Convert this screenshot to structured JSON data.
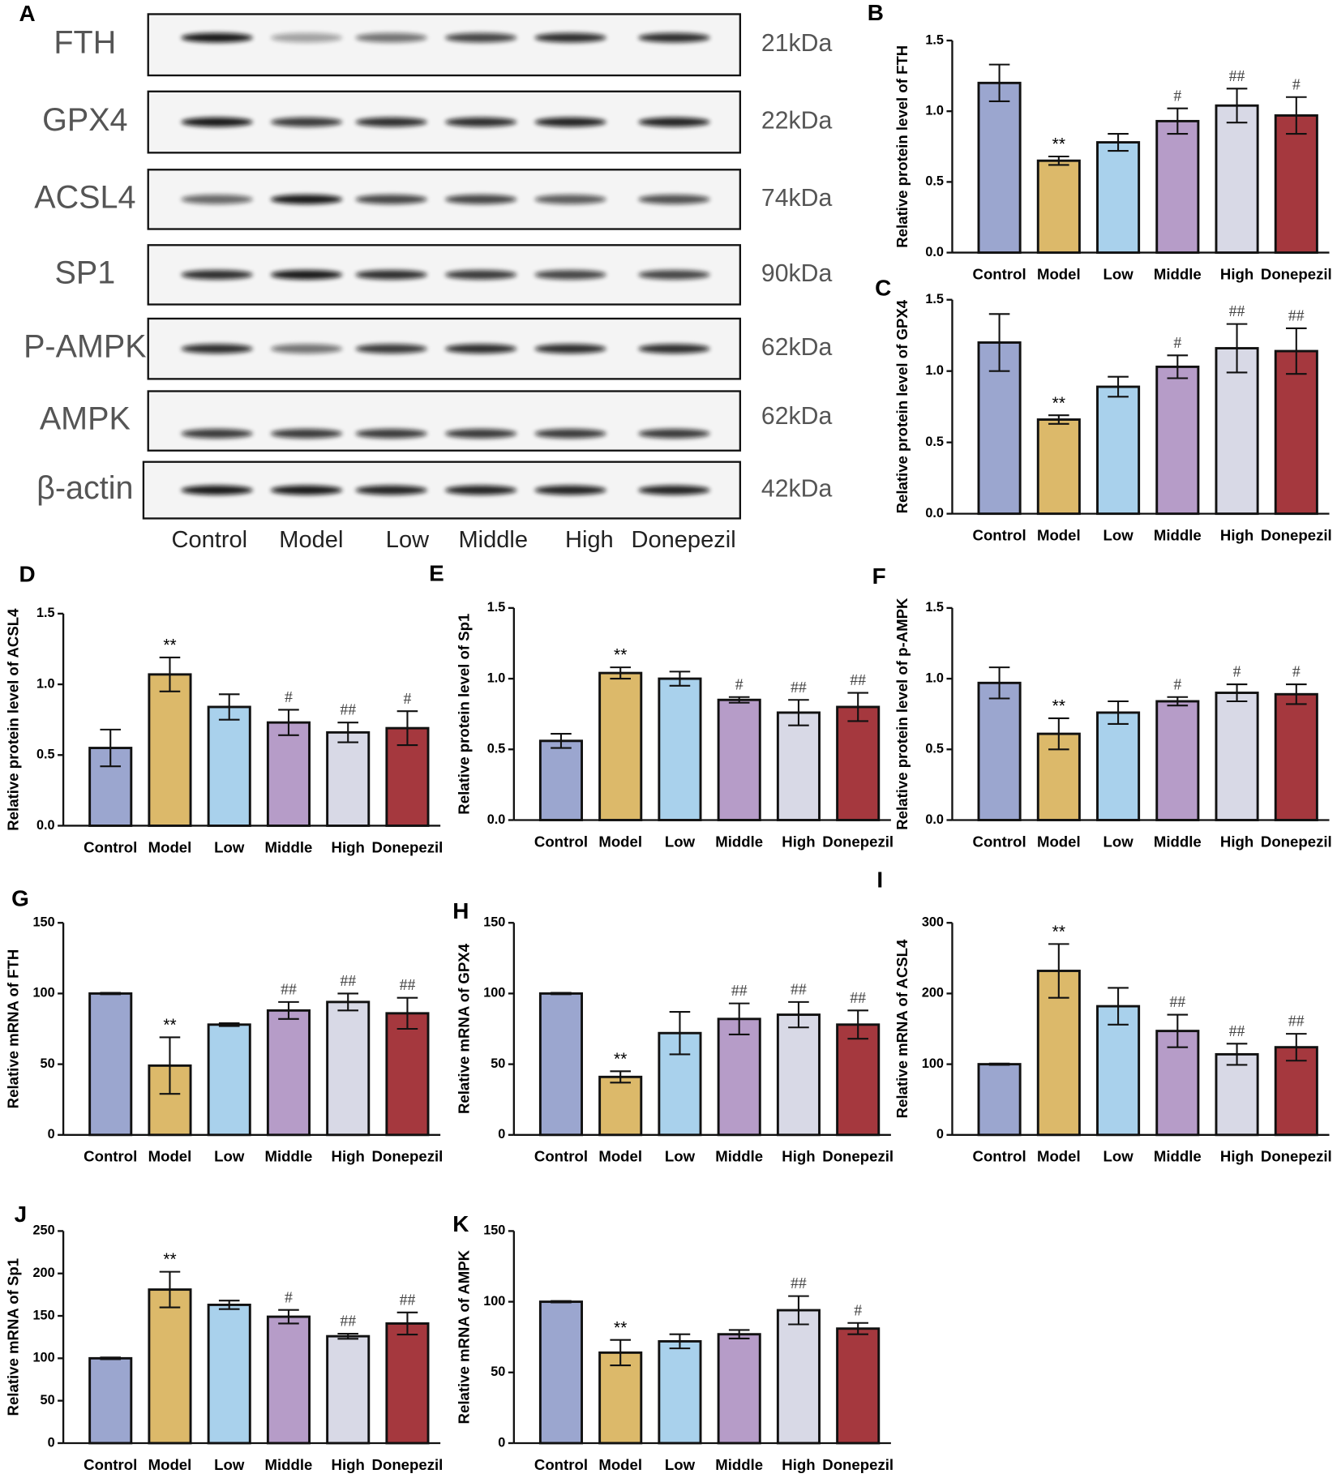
{
  "blot": {
    "label": "A",
    "proteins": [
      {
        "name": "FTH",
        "size": "21kDa"
      },
      {
        "name": "GPX4",
        "size": "22kDa"
      },
      {
        "name": "ACSL4",
        "size": "74kDa"
      },
      {
        "name": "SP1",
        "size": "90kDa"
      },
      {
        "name": "P-AMPK",
        "size": "62kDa"
      },
      {
        "name": "AMPK",
        "size": "62kDa"
      },
      {
        "name": "β-actin",
        "size": "42kDa"
      }
    ],
    "groups": [
      "Control",
      "Model",
      "Low",
      "Middle",
      "High",
      "Donepezil"
    ]
  },
  "chart_data": [
    {
      "type": "bar",
      "label": "B",
      "ylabel": "Relative protein level of  FTH",
      "categories": [
        "Control",
        "Model",
        "Low",
        "Middle",
        "High",
        "Donepezil"
      ],
      "values": [
        1.2,
        0.65,
        0.78,
        0.93,
        1.04,
        0.97
      ],
      "errors": [
        0.13,
        0.03,
        0.06,
        0.09,
        0.12,
        0.13
      ],
      "annotations": [
        null,
        "**",
        null,
        "#",
        "##",
        "#"
      ],
      "colors": [
        "#9ba6cf",
        "#dcb96a",
        "#a9d1ec",
        "#b69cc8",
        "#d8d9e6",
        "#a5383e"
      ],
      "ylim": [
        0,
        1.5
      ],
      "yticks": [
        {
          "value": 0,
          "label": "0.0"
        },
        {
          "value": 0.5,
          "label": "0.5"
        },
        {
          "value": 1,
          "label": "1.0"
        },
        {
          "value": 1.5,
          "label": "1.5"
        }
      ]
    },
    {
      "type": "bar",
      "label": "C",
      "ylabel": "Relative protein level of  GPX4",
      "categories": [
        "Control",
        "Model",
        "Low",
        "Middle",
        "High",
        "Donepezil"
      ],
      "values": [
        1.2,
        0.66,
        0.89,
        1.03,
        1.16,
        1.14
      ],
      "errors": [
        0.2,
        0.03,
        0.07,
        0.08,
        0.17,
        0.16
      ],
      "annotations": [
        null,
        "**",
        null,
        "#",
        "##",
        "##"
      ],
      "colors": [
        "#9ba6cf",
        "#dcb96a",
        "#a9d1ec",
        "#b69cc8",
        "#d8d9e6",
        "#a5383e"
      ],
      "ylim": [
        0,
        1.5
      ],
      "yticks": [
        {
          "value": 0,
          "label": "0.0"
        },
        {
          "value": 0.5,
          "label": "0.5"
        },
        {
          "value": 1,
          "label": "1.0"
        },
        {
          "value": 1.5,
          "label": "1.5"
        }
      ]
    },
    {
      "type": "bar",
      "label": "D",
      "ylabel": "Relative protein level of  ACSL4",
      "categories": [
        "Control",
        "Model",
        "Low",
        "Middle",
        "High",
        "Donepezil"
      ],
      "values": [
        0.55,
        1.07,
        0.84,
        0.73,
        0.66,
        0.69
      ],
      "errors": [
        0.13,
        0.12,
        0.09,
        0.09,
        0.07,
        0.12
      ],
      "annotations": [
        null,
        "**",
        null,
        "#",
        "##",
        "#"
      ],
      "colors": [
        "#9ba6cf",
        "#dcb96a",
        "#a9d1ec",
        "#b69cc8",
        "#d8d9e6",
        "#a5383e"
      ],
      "ylim": [
        0,
        1.5
      ],
      "yticks": [
        {
          "value": 0,
          "label": "0.0"
        },
        {
          "value": 0.5,
          "label": "0.5"
        },
        {
          "value": 1,
          "label": "1.0"
        },
        {
          "value": 1.5,
          "label": "1.5"
        }
      ]
    },
    {
      "type": "bar",
      "label": "E",
      "ylabel": "Relative protein level of  Sp1",
      "categories": [
        "Control",
        "Model",
        "Low",
        "Middle",
        "High",
        "Donepezil"
      ],
      "values": [
        0.56,
        1.04,
        1.0,
        0.85,
        0.76,
        0.8
      ],
      "errors": [
        0.05,
        0.04,
        0.05,
        0.02,
        0.09,
        0.1
      ],
      "annotations": [
        null,
        "**",
        null,
        "#",
        "##",
        "##"
      ],
      "colors": [
        "#9ba6cf",
        "#dcb96a",
        "#a9d1ec",
        "#b69cc8",
        "#d8d9e6",
        "#a5383e"
      ],
      "ylim": [
        0,
        1.5
      ],
      "yticks": [
        {
          "value": 0,
          "label": "0.0"
        },
        {
          "value": 0.5,
          "label": "0.5"
        },
        {
          "value": 1,
          "label": "1.0"
        },
        {
          "value": 1.5,
          "label": "1.5"
        }
      ]
    },
    {
      "type": "bar",
      "label": "F",
      "ylabel": "Relative protein level of  p-AMPK",
      "categories": [
        "Control",
        "Model",
        "Low",
        "Middle",
        "High",
        "Donepezil"
      ],
      "values": [
        0.97,
        0.61,
        0.76,
        0.84,
        0.9,
        0.89
      ],
      "errors": [
        0.11,
        0.11,
        0.08,
        0.03,
        0.06,
        0.07
      ],
      "annotations": [
        null,
        "**",
        null,
        "#",
        "#",
        "#"
      ],
      "colors": [
        "#9ba6cf",
        "#dcb96a",
        "#a9d1ec",
        "#b69cc8",
        "#d8d9e6",
        "#a5383e"
      ],
      "ylim": [
        0,
        1.5
      ],
      "yticks": [
        {
          "value": 0,
          "label": "0.0"
        },
        {
          "value": 0.5,
          "label": "0.5"
        },
        {
          "value": 1,
          "label": "1.0"
        },
        {
          "value": 1.5,
          "label": "1.5"
        }
      ]
    },
    {
      "type": "bar",
      "label": "G",
      "ylabel": "Relative mRNA of FTH",
      "categories": [
        "Control",
        "Model",
        "Low",
        "Middle",
        "High",
        "Donepezil"
      ],
      "values": [
        100,
        49,
        78,
        88,
        94,
        86
      ],
      "errors": [
        0.5,
        20,
        1,
        6,
        6,
        11
      ],
      "annotations": [
        null,
        "**",
        null,
        "##",
        "##",
        "##"
      ],
      "colors": [
        "#9ba6cf",
        "#dcb96a",
        "#a9d1ec",
        "#b69cc8",
        "#d8d9e6",
        "#a5383e"
      ],
      "ylim": [
        0,
        150
      ],
      "yticks": [
        0,
        50,
        100,
        150
      ]
    },
    {
      "type": "bar",
      "label": "H",
      "ylabel": "Relative mRNA of GPX4",
      "categories": [
        "Control",
        "Model",
        "Low",
        "Middle",
        "High",
        "Donepezil"
      ],
      "values": [
        100,
        41,
        72,
        82,
        85,
        78
      ],
      "errors": [
        0.5,
        4,
        15,
        11,
        9,
        10
      ],
      "annotations": [
        null,
        "**",
        null,
        "##",
        "##",
        "##"
      ],
      "colors": [
        "#9ba6cf",
        "#dcb96a",
        "#a9d1ec",
        "#b69cc8",
        "#d8d9e6",
        "#a5383e"
      ],
      "ylim": [
        0,
        150
      ],
      "yticks": [
        0,
        50,
        100,
        150
      ]
    },
    {
      "type": "bar",
      "label": "I",
      "ylabel": "Relative mRNA of ACSL4",
      "categories": [
        "Control",
        "Model",
        "Low",
        "Middle",
        "High",
        "Donepezil"
      ],
      "values": [
        100,
        232,
        182,
        147,
        114,
        124
      ],
      "errors": [
        1,
        38,
        26,
        23,
        15,
        19
      ],
      "annotations": [
        null,
        "**",
        null,
        "##",
        "##",
        "##"
      ],
      "colors": [
        "#9ba6cf",
        "#dcb96a",
        "#a9d1ec",
        "#b69cc8",
        "#d8d9e6",
        "#a5383e"
      ],
      "ylim": [
        0,
        300
      ],
      "yticks": [
        0,
        100,
        200,
        300
      ]
    },
    {
      "type": "bar",
      "label": "J",
      "ylabel": "Relative mRNA of Sp1",
      "categories": [
        "Control",
        "Model",
        "Low",
        "Middle",
        "High",
        "Donepezil"
      ],
      "values": [
        100,
        181,
        163,
        149,
        126,
        141
      ],
      "errors": [
        1,
        21,
        5,
        8,
        3,
        13
      ],
      "annotations": [
        null,
        "**",
        null,
        "#",
        "##",
        "##"
      ],
      "colors": [
        "#9ba6cf",
        "#dcb96a",
        "#a9d1ec",
        "#b69cc8",
        "#d8d9e6",
        "#a5383e"
      ],
      "ylim": [
        0,
        250
      ],
      "yticks": [
        0,
        50,
        100,
        150,
        200,
        250
      ]
    },
    {
      "type": "bar",
      "label": "K",
      "ylabel": "Relative mRNA of AMPK",
      "categories": [
        "Control",
        "Model",
        "Low",
        "Middle",
        "High",
        "Donepezil"
      ],
      "values": [
        100,
        64,
        72,
        77,
        94,
        81
      ],
      "errors": [
        0.5,
        9,
        5,
        3,
        10,
        4
      ],
      "annotations": [
        null,
        "**",
        null,
        null,
        "##",
        "#"
      ],
      "colors": [
        "#9ba6cf",
        "#dcb96a",
        "#a9d1ec",
        "#b69cc8",
        "#d8d9e6",
        "#a5383e"
      ],
      "ylim": [
        0,
        150
      ],
      "yticks": [
        0,
        50,
        100,
        150
      ]
    }
  ]
}
